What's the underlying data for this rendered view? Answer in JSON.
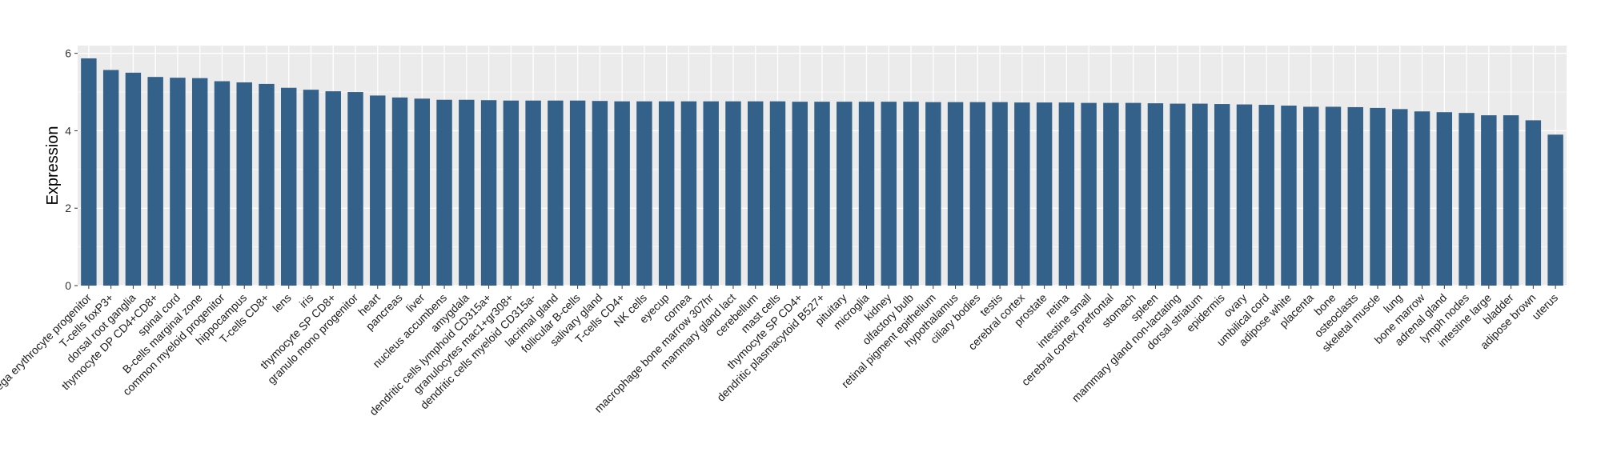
{
  "chart_data": {
    "type": "bar",
    "ylabel": "Expression",
    "xlabel": "",
    "ylim": [
      0,
      6.2
    ],
    "yticks": [
      0,
      2,
      4,
      6
    ],
    "grid": true,
    "legend": "none",
    "colors": {
      "bar": "#336189",
      "panel": "#ebebeb",
      "grid": "#ffffff"
    },
    "categories": [
      "mega erythrocyte progenitor",
      "T-cells foxP3+",
      "dorsal root ganglia",
      "thymocyte DP CD4+CD8+",
      "spinal cord",
      "B-cells marginal zone",
      "common myeloid progenitor",
      "hippocampus",
      "T-cells CD8+",
      "lens",
      "iris",
      "thymocyte SP CD8+",
      "granulo mono progenitor",
      "heart",
      "pancreas",
      "liver",
      "nucleus accumbens",
      "amygdala",
      "dendritic cells lymphoid CD315a+",
      "granulocytes mac1+gr308+",
      "dendritic cells myeloid CD315a-",
      "lacrimal gland",
      "follicular B-cells",
      "salivary gland",
      "T-cells CD4+",
      "NK cells",
      "eyecup",
      "cornea",
      "macrophage bone marrow 307hr",
      "mammary gland  lact",
      "cerebellum",
      "mast cells",
      "thymocyte SP CD4+",
      "dendritic plasmacytoid B527+",
      "pituitary",
      "microglia",
      "kidney",
      "olfactory bulb",
      "retinal pigment epithelium",
      "hypothalamus",
      "ciliary bodies",
      "testis",
      "cerebral cortex",
      "prostate",
      "retina",
      "intestine small",
      "cerebral cortex prefrontal",
      "stomach",
      "spleen",
      "mammary gland non-lactating",
      "dorsal striatum",
      "epidermis",
      "ovary",
      "umbilical cord",
      "adipose white",
      "placenta",
      "bone",
      "osteoclasts",
      "skeletal muscle",
      "lung",
      "bone marrow",
      "adrenal gland",
      "lymph nodes",
      "intestine large",
      "bladder",
      "adipose brown",
      "uterus"
    ],
    "values": [
      5.87,
      5.57,
      5.5,
      5.39,
      5.37,
      5.36,
      5.28,
      5.25,
      5.21,
      5.11,
      5.06,
      5.02,
      5.0,
      4.91,
      4.86,
      4.83,
      4.8,
      4.8,
      4.79,
      4.78,
      4.78,
      4.78,
      4.78,
      4.77,
      4.76,
      4.76,
      4.76,
      4.76,
      4.76,
      4.76,
      4.76,
      4.76,
      4.75,
      4.75,
      4.75,
      4.75,
      4.75,
      4.75,
      4.74,
      4.74,
      4.74,
      4.74,
      4.73,
      4.73,
      4.73,
      4.72,
      4.72,
      4.72,
      4.71,
      4.7,
      4.7,
      4.69,
      4.68,
      4.67,
      4.65,
      4.62,
      4.62,
      4.61,
      4.59,
      4.56,
      4.5,
      4.48,
      4.46,
      4.4,
      4.4,
      4.27,
      3.9
    ]
  }
}
